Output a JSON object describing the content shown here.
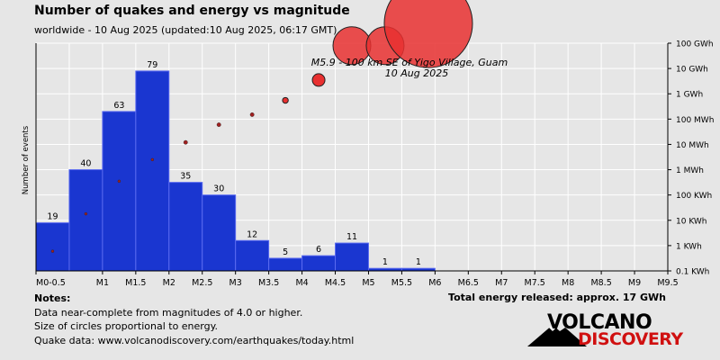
{
  "header": {
    "title": "Number of quakes and energy vs magnitude",
    "subtitle": "worldwide - 10 Aug 2025 (updated:10 Aug 2025, 06:17 GMT)"
  },
  "chart_data": {
    "type": "bar",
    "ylabel": "Number of events",
    "x_ticks": [
      "M0-0.5",
      "M1",
      "M1.5",
      "M2",
      "M2.5",
      "M3",
      "M3.5",
      "M4",
      "M4.5",
      "M5",
      "M5.5",
      "M6",
      "M6.5",
      "M7",
      "M7.5",
      "M8",
      "M8.5",
      "M9",
      "M9.5"
    ],
    "bins": [
      "M0-0.5",
      "M0.5-1",
      "M1-1.5",
      "M1.5-2",
      "M2-2.5",
      "M2.5-3",
      "M3-3.5",
      "M3.5-4",
      "M4-4.5",
      "M4.5-5",
      "M5-5.5",
      "M5.5-6"
    ],
    "counts": [
      19,
      40,
      63,
      79,
      35,
      30,
      12,
      5,
      6,
      11,
      1,
      1
    ],
    "ylim": [
      0,
      90
    ],
    "energy_axis": {
      "label_ticks": [
        "0.1 KWh",
        "1 KWh",
        "10 KWh",
        "100 KWh",
        "1 MWh",
        "10 MWh",
        "100 MWh",
        "1 GWh",
        "10 GWh",
        "100 GWh"
      ],
      "log_range_kwh": [
        0.1,
        100000000
      ]
    },
    "energy_points": [
      {
        "magnitude": 0.25,
        "energy_kwh": 0.6,
        "circle": "dot"
      },
      {
        "magnitude": 0.75,
        "energy_kwh": 18,
        "circle": "dot"
      },
      {
        "magnitude": 1.25,
        "energy_kwh": 350,
        "circle": "dot"
      },
      {
        "magnitude": 1.75,
        "energy_kwh": 2500,
        "circle": "dot"
      },
      {
        "magnitude": 2.25,
        "energy_kwh": 12000,
        "circle": "small"
      },
      {
        "magnitude": 2.75,
        "energy_kwh": 60000,
        "circle": "small"
      },
      {
        "magnitude": 3.25,
        "energy_kwh": 150000,
        "circle": "small"
      },
      {
        "magnitude": 3.75,
        "energy_kwh": 550000,
        "circle": "medium"
      },
      {
        "magnitude": 4.25,
        "energy_kwh": 3500000,
        "circle": "large"
      },
      {
        "magnitude": 4.75,
        "energy_kwh": 80000000,
        "circle": "xlarge"
      },
      {
        "magnitude": 5.25,
        "energy_kwh": 80000000,
        "circle": "xlarge"
      },
      {
        "magnitude": 5.9,
        "energy_kwh": 600000000,
        "circle": "max"
      }
    ],
    "annotation": {
      "line1": "M5.9 - 100 km SE of Yigo Village, Guam",
      "line2": "10 Aug 2025"
    },
    "colors": {
      "bar": "#1a36d0",
      "bar_edge": "#5a6af0",
      "circle": "#e83030",
      "circle_stroke": "#222222",
      "grid": "#ffffff"
    },
    "grid": true
  },
  "notes": {
    "heading": "Notes:",
    "line1": "Data near-complete from magnitudes of 4.0 or higher.",
    "line2": "Size of circles proportional to energy.",
    "line3": "Quake data: www.volcanodiscovery.com/earthquakes/today.html"
  },
  "total_energy": "Total energy released: approx. 17 GWh",
  "logo": {
    "word1": "VOLCANO",
    "word2": "DISCOVERY"
  }
}
